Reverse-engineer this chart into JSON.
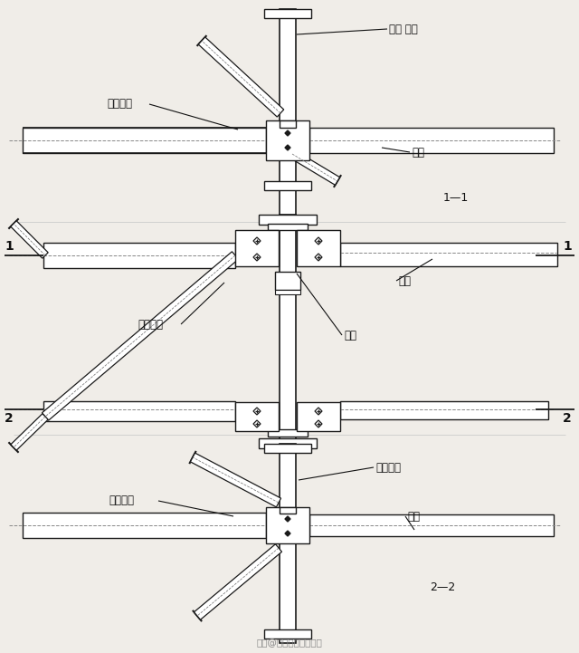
{
  "bg_color": "#f0ede8",
  "line_color": "#1a1a1a",
  "text_color": "#111111",
  "fig_width": 6.4,
  "fig_height": 7.21,
  "panel1": {
    "label_shangxian": "屋架 上弦",
    "label_support": "上弦支撇",
    "label_xigan": "系杆",
    "section_label": "1—1"
  },
  "panel2": {
    "label_zhuxiang": "笺向支撇",
    "label_wujia": "屋架",
    "label_xigan": "系杆",
    "ref1": "1",
    "ref2": "2"
  },
  "panel3": {
    "label_xiaxian": "屋架下弦",
    "label_support": "下弦支撇",
    "label_xigan": "系杆",
    "section_label": "2—2"
  },
  "footer": "头条@建筑工程资料乐享"
}
